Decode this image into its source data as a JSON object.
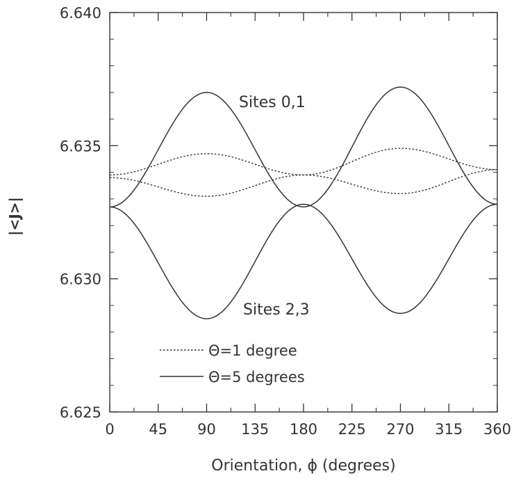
{
  "chart_data": {
    "type": "line",
    "xlabel": "Orientation, ϕ (degrees)",
    "ylabel": "|<J>|",
    "xlim": [
      0,
      360
    ],
    "ylim": [
      6.625,
      6.64
    ],
    "x_ticks": [
      "0",
      "45",
      "90",
      "135",
      "180",
      "225",
      "270",
      "315",
      "360"
    ],
    "y_ticks": [
      "6.625",
      "6.630",
      "6.635",
      "6.640"
    ],
    "grid": false,
    "legend_position": "bottom-left",
    "legend": [
      {
        "label": "Θ=1 degree",
        "style": "dotted"
      },
      {
        "label": "Θ=5 degrees",
        "style": "solid"
      }
    ],
    "annotations": [
      {
        "text": "Sites 0,1",
        "x": 160,
        "y": 6.6365
      },
      {
        "text": "Sites 2,3",
        "x": 160,
        "y": 6.629
      }
    ],
    "series": [
      {
        "group": "Θ=5 degrees, Sites 0,1",
        "style": "solid",
        "x": [
          0,
          90,
          180,
          270,
          360
        ],
        "y": [
          6.6327,
          6.637,
          6.6327,
          6.6372,
          6.6328
        ]
      },
      {
        "group": "Θ=5 degrees, Sites 2,3",
        "style": "solid",
        "x": [
          0,
          90,
          180,
          270,
          360
        ],
        "y": [
          6.6327,
          6.6285,
          6.6328,
          6.6287,
          6.6328
        ]
      },
      {
        "group": "Θ=1 degree, Sites 0,1",
        "style": "dotted",
        "x": [
          0,
          90,
          180,
          270,
          360
        ],
        "y": [
          6.6339,
          6.6347,
          6.6339,
          6.6349,
          6.6341
        ]
      },
      {
        "group": "Θ=1 degree, Sites 2,3",
        "style": "dotted",
        "x": [
          0,
          90,
          180,
          270,
          360
        ],
        "y": [
          6.6338,
          6.6331,
          6.6339,
          6.6332,
          6.6341
        ]
      }
    ]
  }
}
